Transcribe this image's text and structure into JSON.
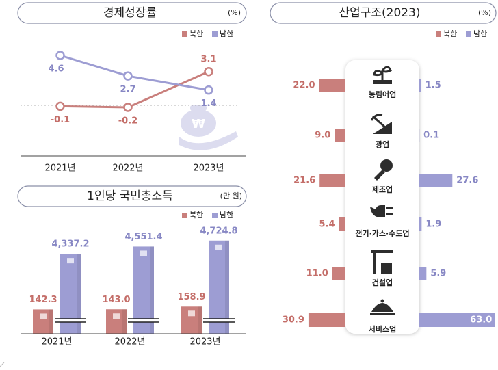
{
  "charts": [
    {
      "type": "line",
      "title": "경제성장률",
      "unit": "(%)",
      "categories": [
        "2021년",
        "2022년",
        "2023년"
      ],
      "series": [
        {
          "name": "북한",
          "color": "#c97f7c",
          "values": [
            -0.1,
            -0.2,
            3.1
          ]
        },
        {
          "name": "남한",
          "color": "#9d9dd3",
          "values": [
            4.6,
            2.7,
            1.4
          ]
        }
      ]
    },
    {
      "type": "bar",
      "title": "1인당 국민총소득",
      "unit": "(만 원)",
      "categories": [
        "2021년",
        "2022년",
        "2023년"
      ],
      "series": [
        {
          "name": "북한",
          "color": "#c97f7c",
          "values": [
            142.3,
            143.0,
            158.9
          ],
          "value_labels": [
            "142.3",
            "143.0",
            "158.9"
          ]
        },
        {
          "name": "남한",
          "color": "#9d9dd3",
          "values": [
            4337.2,
            4551.4,
            4724.8
          ],
          "value_labels": [
            "4,337.2",
            "4,551.4",
            "4,724.8"
          ]
        }
      ]
    },
    {
      "type": "butterfly",
      "title": "산업구조(2023)",
      "unit": "(%)",
      "categories": [
        "농림어업",
        "광업",
        "제조업",
        "전기·가스·수도업",
        "건설업",
        "서비스업"
      ],
      "series": [
        {
          "name": "북한",
          "color": "#c97f7c",
          "values": [
            22.0,
            9.0,
            21.6,
            5.4,
            11.0,
            30.9
          ],
          "value_labels": [
            "22.0",
            "9.0",
            "21.6",
            "5.4",
            "11.0",
            "30.9"
          ]
        },
        {
          "name": "남한",
          "color": "#9d9dd3",
          "values": [
            1.5,
            0.1,
            27.6,
            1.9,
            5.9,
            63.0
          ],
          "value_labels": [
            "1.5",
            "0.1",
            "27.6",
            "1.9",
            "5.9",
            "63.0"
          ]
        }
      ]
    }
  ]
}
